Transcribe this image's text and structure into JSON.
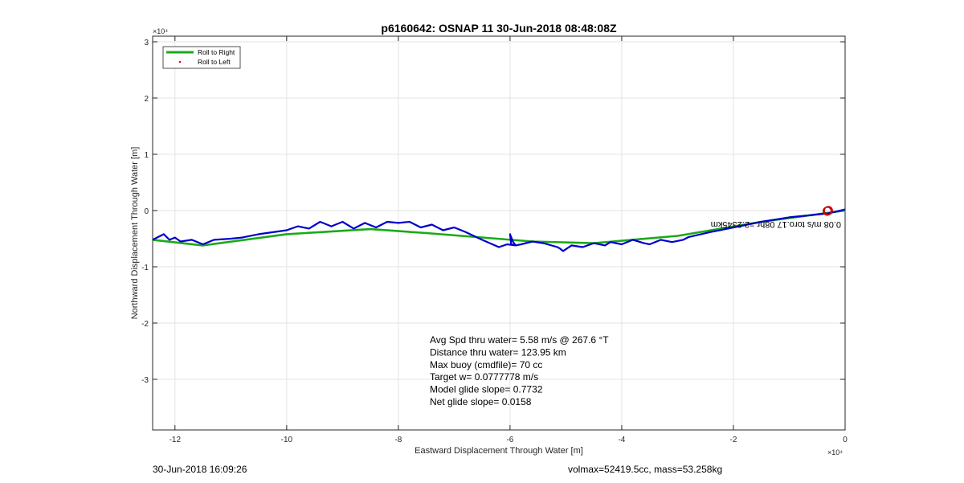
{
  "chart_data": {
    "type": "line",
    "title": "p6160642: OSNAP 11 30-Jun-2018 08:48:08Z",
    "xlabel": "Eastward Displacement Through Water [m]",
    "ylabel": "Northward Displacement Through Water [m]",
    "x_exponent_label": "×10⁴",
    "y_exponent_label": "×10⁴",
    "xlim": [
      -12.4,
      0
    ],
    "ylim": [
      -3.9,
      3.1
    ],
    "x_ticks": [
      -12,
      -10,
      -8,
      -6,
      -4,
      -2,
      0
    ],
    "x_tick_labels": [
      "-12",
      "-10",
      "-8",
      "-6",
      "-4",
      "-2",
      "0"
    ],
    "y_ticks": [
      -3,
      -2,
      -1,
      0,
      1,
      2,
      3
    ],
    "y_tick_labels": [
      "-3",
      "-2",
      "-1",
      "0",
      "1",
      "2",
      "3"
    ],
    "grid": true,
    "legend_position": "top-left",
    "legend": [
      {
        "label": "Roll to Right",
        "color": "#1aaa1a",
        "marker": "line"
      },
      {
        "label": "Roll to Left",
        "color": "#ff0000",
        "marker": "dot"
      }
    ],
    "series": [
      {
        "color": "#1aaa1a",
        "x": [
          0,
          -1.5,
          -3,
          -4.5,
          -5.6,
          -7.5,
          -8.5,
          -10,
          -11.5,
          -12.4
        ],
        "y": [
          0,
          -0.2,
          -0.45,
          -0.58,
          -0.55,
          -0.4,
          -0.33,
          -0.42,
          -0.62,
          -0.52
        ]
      },
      {
        "color": "#0000cc",
        "x": [
          0,
          -0.3,
          -0.6,
          -1.0,
          -1.5,
          -2.0,
          -2.4,
          -2.8,
          -2.9,
          -3.1,
          -3.3,
          -3.5,
          -3.6,
          -3.8,
          -4.0,
          -4.2,
          -4.3,
          -4.5,
          -4.7,
          -4.9,
          -5.05,
          -5.1,
          -5.15,
          -5.4,
          -5.6,
          -5.8,
          -5.9,
          -5.95,
          -6.0,
          -5.98,
          -5.9,
          -6.05,
          -6.2,
          -6.5,
          -6.8,
          -7.0,
          -7.2,
          -7.4,
          -7.6,
          -7.8,
          -8.0,
          -8.2,
          -8.4,
          -8.6,
          -8.8,
          -9.0,
          -9.2,
          -9.4,
          -9.6,
          -9.8,
          -10.0,
          -10.5,
          -10.8,
          -11.0,
          -11.3,
          -11.5,
          -11.7,
          -11.9,
          -12.0,
          -12.1,
          -12.2,
          -12.4
        ],
        "y": [
          0.02,
          -0.05,
          -0.08,
          -0.12,
          -0.2,
          -0.3,
          -0.38,
          -0.47,
          -0.52,
          -0.56,
          -0.52,
          -0.6,
          -0.58,
          -0.52,
          -0.6,
          -0.56,
          -0.62,
          -0.58,
          -0.65,
          -0.62,
          -0.72,
          -0.68,
          -0.65,
          -0.58,
          -0.55,
          -0.6,
          -0.62,
          -0.55,
          -0.42,
          -0.6,
          -0.62,
          -0.6,
          -0.65,
          -0.52,
          -0.38,
          -0.3,
          -0.35,
          -0.25,
          -0.3,
          -0.2,
          -0.22,
          -0.2,
          -0.3,
          -0.22,
          -0.32,
          -0.2,
          -0.28,
          -0.2,
          -0.32,
          -0.28,
          -0.35,
          -0.42,
          -0.48,
          -0.5,
          -0.52,
          -0.6,
          -0.52,
          -0.55,
          -0.48,
          -0.52,
          -0.42,
          -0.52
        ]
      }
    ],
    "end_markers": {
      "red_circles": [
        [
          -0.3,
          0.0
        ],
        [
          -0.32,
          -0.01
        ]
      ],
      "label": "0.08 m/s toro.17 08hr =2.2345km"
    },
    "annotations": [
      "Avg Spd thru water=  5.58 m/s @ 267.6 °T",
      "Distance thru water= 123.95 km",
      "Max buoy (cmdfile)= 70 cc",
      "Target w= 0.0777778 m/s",
      "Model glide slope= 0.7732",
      "Net glide slope= 0.0158"
    ]
  },
  "footer": {
    "left": "30-Jun-2018 16:09:26",
    "right": "volmax=52419.5cc, mass=53.258kg"
  }
}
